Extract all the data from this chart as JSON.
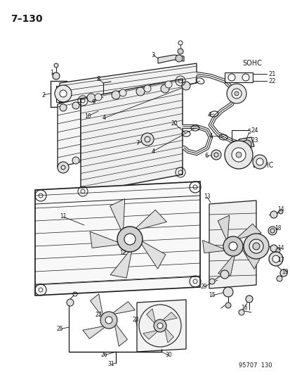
{
  "title": "7–130",
  "footer": "95707  130",
  "background": "#ffffff",
  "fig_width": 4.14,
  "fig_height": 5.33,
  "dpi": 100,
  "line_color": "#1a1a1a",
  "text_color": "#1a1a1a"
}
